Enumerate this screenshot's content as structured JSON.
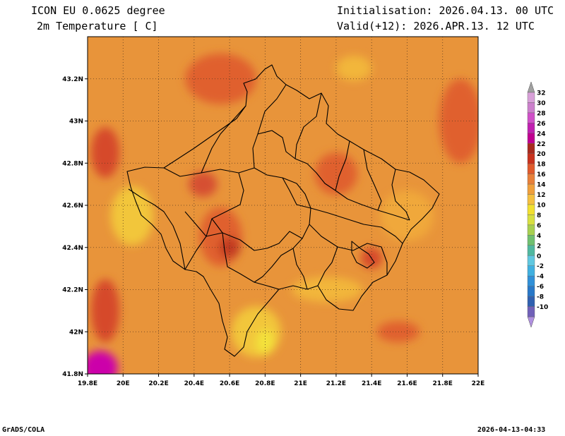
{
  "header": {
    "title_line1": "ICON EU 0.0625 degree",
    "title_line2": "2m Temperature [ C]",
    "init": "Initialisation: 2026.04.13. 00 UTC",
    "valid": "Valid(+12): 2026.APR.13. 12 UTC"
  },
  "footer": {
    "left": "GrADS/COLA",
    "right": "2026-04-13-04:33"
  },
  "map": {
    "lon_range": [
      19.8,
      22.0
    ],
    "lat_range": [
      41.8,
      43.4
    ],
    "lon_ticks": [
      {
        "value": 19.8,
        "label": "19.8E"
      },
      {
        "value": 20.0,
        "label": "20E"
      },
      {
        "value": 20.2,
        "label": "20.2E"
      },
      {
        "value": 20.4,
        "label": "20.4E"
      },
      {
        "value": 20.6,
        "label": "20.6E"
      },
      {
        "value": 20.8,
        "label": "20.8E"
      },
      {
        "value": 21.0,
        "label": "21E"
      },
      {
        "value": 21.2,
        "label": "21.2E"
      },
      {
        "value": 21.4,
        "label": "21.4E"
      },
      {
        "value": 21.6,
        "label": "21.6E"
      },
      {
        "value": 21.8,
        "label": "21.8E"
      },
      {
        "value": 22.0,
        "label": "22E"
      }
    ],
    "lat_ticks": [
      {
        "value": 41.8,
        "label": "41.8N"
      },
      {
        "value": 42.0,
        "label": "42N"
      },
      {
        "value": 42.2,
        "label": "42.2N"
      },
      {
        "value": 42.4,
        "label": "42.4N"
      },
      {
        "value": 42.6,
        "label": "42.6N"
      },
      {
        "value": 42.8,
        "label": "42.8N"
      },
      {
        "value": 43.0,
        "label": "43N"
      },
      {
        "value": 43.2,
        "label": "43.2N"
      }
    ],
    "background_color": "#e8943a",
    "hot_areas": [
      {
        "lon": 20.55,
        "lat": 42.45,
        "rlon": 0.12,
        "rlat": 0.14,
        "color": "#e0602f"
      },
      {
        "lon": 20.6,
        "lat": 42.4,
        "rlon": 0.06,
        "rlat": 0.05,
        "color": "#c23a22"
      },
      {
        "lon": 20.45,
        "lat": 42.7,
        "rlon": 0.08,
        "rlat": 0.06,
        "color": "#d65030"
      },
      {
        "lon": 20.55,
        "lat": 43.2,
        "rlon": 0.2,
        "rlat": 0.12,
        "color": "#e0602f"
      },
      {
        "lon": 21.2,
        "lat": 42.75,
        "rlon": 0.12,
        "rlat": 0.1,
        "color": "#e0602f"
      },
      {
        "lon": 21.9,
        "lat": 43.0,
        "rlon": 0.12,
        "rlat": 0.2,
        "color": "#e0602f"
      },
      {
        "lon": 19.9,
        "lat": 42.85,
        "rlon": 0.08,
        "rlat": 0.12,
        "color": "#d64a2a"
      },
      {
        "lon": 19.9,
        "lat": 42.1,
        "rlon": 0.08,
        "rlat": 0.15,
        "color": "#d64a2a"
      },
      {
        "lon": 21.4,
        "lat": 42.35,
        "rlon": 0.06,
        "rlat": 0.05,
        "color": "#d64a2a"
      },
      {
        "lon": 21.55,
        "lat": 42.0,
        "rlon": 0.12,
        "rlat": 0.05,
        "color": "#e0602f"
      }
    ],
    "cool_areas": [
      {
        "lon": 20.05,
        "lat": 42.55,
        "rlon": 0.12,
        "rlat": 0.14,
        "color": "#f2c63a"
      },
      {
        "lon": 20.75,
        "lat": 42.0,
        "rlon": 0.14,
        "rlat": 0.12,
        "color": "#f2c63a"
      },
      {
        "lon": 20.8,
        "lat": 41.95,
        "rlon": 0.05,
        "rlat": 0.06,
        "color": "#f3e23a"
      },
      {
        "lon": 21.15,
        "lat": 42.2,
        "rlon": 0.2,
        "rlat": 0.06,
        "color": "#f2b63a"
      },
      {
        "lon": 21.3,
        "lat": 43.25,
        "rlon": 0.1,
        "rlat": 0.06,
        "color": "#f2b63a"
      },
      {
        "lon": 21.6,
        "lat": 42.55,
        "rlon": 0.15,
        "rlat": 0.12,
        "color": "#f0a83a"
      }
    ],
    "extreme_area": {
      "lon": 19.87,
      "lat": 41.83,
      "rlon": 0.1,
      "rlat": 0.08,
      "color": "#cc00aa"
    }
  },
  "colorbar": {
    "levels": [
      {
        "label": "32",
        "color": "#d8a0d8"
      },
      {
        "label": "30",
        "color": "#cc80cc"
      },
      {
        "label": "28",
        "color": "#d050c8"
      },
      {
        "label": "26",
        "color": "#c020b0"
      },
      {
        "label": "24",
        "color": "#c00090"
      },
      {
        "label": "22",
        "color": "#a82a1e"
      },
      {
        "label": "20",
        "color": "#c8321e"
      },
      {
        "label": "18",
        "color": "#e05a2c"
      },
      {
        "label": "16",
        "color": "#e8803a"
      },
      {
        "label": "14",
        "color": "#f0a03c"
      },
      {
        "label": "12",
        "color": "#f5c040"
      },
      {
        "label": "10",
        "color": "#f2e030"
      },
      {
        "label": "8",
        "color": "#d8e040"
      },
      {
        "label": "6",
        "color": "#a8d050"
      },
      {
        "label": "4",
        "color": "#70c070"
      },
      {
        "label": "2",
        "color": "#50b8a0"
      },
      {
        "label": "0",
        "color": "#60c8e0"
      },
      {
        "label": "-2",
        "color": "#40b0e0"
      },
      {
        "label": "-4",
        "color": "#3090d8"
      },
      {
        "label": "-6",
        "color": "#2878c8"
      },
      {
        "label": "-8",
        "color": "#3060b0"
      },
      {
        "label": "-10",
        "color": "#7060b8"
      }
    ],
    "top_arrow_color": "#a0a0a0",
    "bottom_arrow_color": "#b090e0"
  }
}
